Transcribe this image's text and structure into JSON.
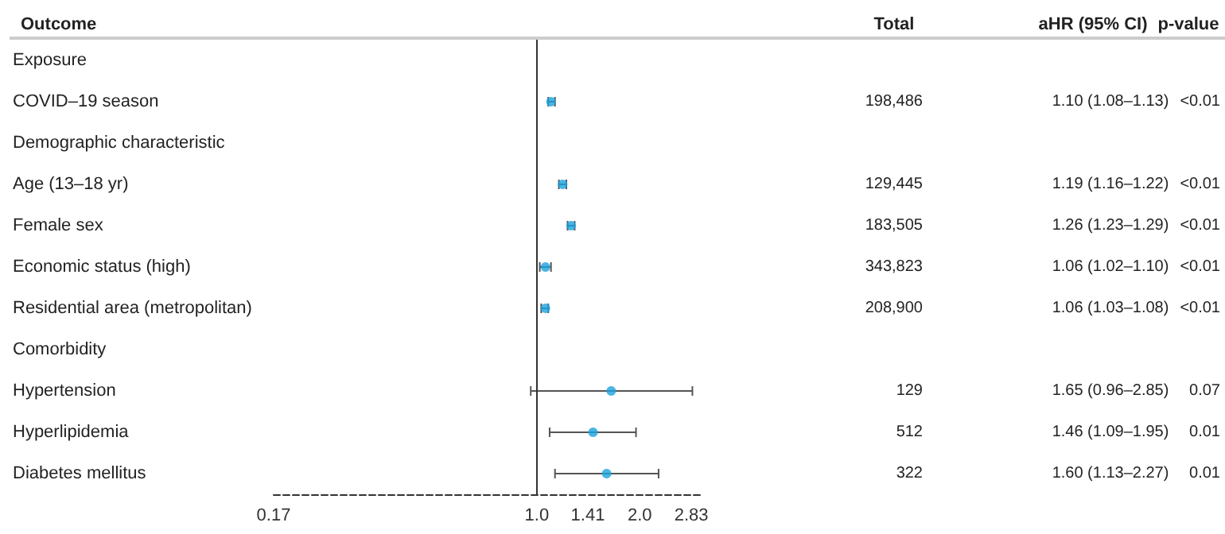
{
  "chart_data": [
    {
      "type": "scatter",
      "orientation": "horizontal",
      "ylabel": "Outcome",
      "categories": [
        "Exposure",
        "COVID–19 season",
        "Demographic characteristic",
        "Age (13–18 yr)",
        "Female sex",
        "Economic status (high)",
        "Residential area (metropolitan)",
        "Comorbidity",
        "Hypertension",
        "Hyperlipidemia",
        "Diabetes mellitus"
      ],
      "values": [
        null,
        1.1,
        null,
        1.19,
        1.26,
        1.06,
        1.06,
        null,
        1.65,
        1.46,
        1.6
      ],
      "errors": [
        null,
        [
          1.08,
          1.13
        ],
        null,
        [
          1.16,
          1.22
        ],
        [
          1.23,
          1.29
        ],
        [
          1.02,
          1.1
        ],
        [
          1.03,
          1.08
        ],
        null,
        [
          0.96,
          2.85
        ],
        [
          1.09,
          1.95
        ],
        [
          1.13,
          2.27
        ]
      ],
      "color": "#1ba3de",
      "marker": "circle",
      "log": "x",
      "xlim": [
        0.17,
        3.0
      ],
      "xticks": [
        0.17,
        {
          "value": 1,
          "label": "1.0"
        },
        1.41,
        {
          "value": 2,
          "label": "2.0"
        },
        2.83
      ],
      "ref_lines": [
        {
          "axis": "x",
          "value": 1,
          "color": "#333333"
        }
      ]
    },
    {
      "type": "other",
      "title": "Total",
      "categories": [
        null,
        "198,486",
        null,
        "129,445",
        "183,505",
        "343,823",
        "208,900",
        null,
        "129",
        "512",
        "322"
      ]
    },
    {
      "type": "other",
      "title": "aHR (95% CI)",
      "categories": [
        null,
        "1.10 (1.08–1.13)",
        null,
        "1.19 (1.16–1.22)",
        "1.26 (1.23–1.29)",
        "1.06 (1.02–1.10)",
        "1.06 (1.03–1.08)",
        null,
        "1.65 (0.96–2.85)",
        "1.46 (1.09–1.95)",
        "1.60 (1.13–2.27)"
      ]
    },
    {
      "type": "other",
      "title": "p-value",
      "categories": [
        null,
        "<0.01",
        null,
        "<0.01",
        "<0.01",
        "<0.01",
        "<0.01",
        null,
        "0.07",
        "0.01",
        "0.01"
      ]
    }
  ]
}
